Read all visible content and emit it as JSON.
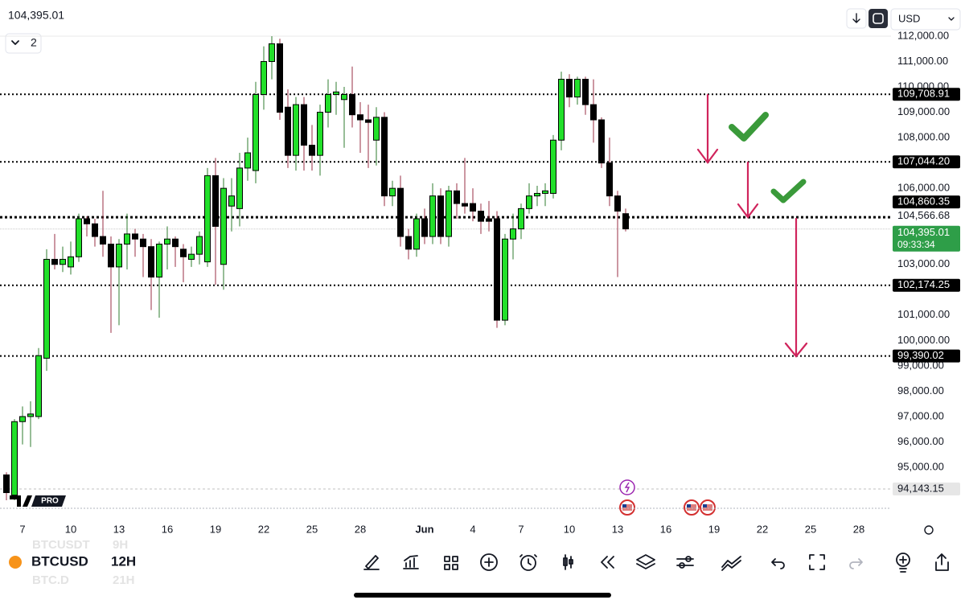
{
  "header": {
    "price": "104,395.01",
    "layout_count": "2",
    "currency": "USD"
  },
  "chart_data": {
    "type": "candlestick",
    "categories": [
      null,
      null,
      "7",
      null,
      null,
      null,
      null,
      null,
      "10",
      null,
      null,
      null,
      null,
      null,
      "13",
      null,
      null,
      null,
      null,
      null,
      "16",
      null,
      null,
      null,
      null,
      null,
      "19",
      null,
      null,
      null,
      null,
      null,
      "22",
      null,
      null,
      null,
      null,
      null,
      "25",
      null,
      null,
      null,
      null,
      null,
      "28",
      null,
      null,
      null,
      null,
      null,
      null,
      null,
      "Jun",
      null,
      null,
      null,
      null,
      null,
      "4",
      null,
      null,
      null,
      null,
      null,
      "7",
      null,
      null,
      null,
      null,
      null,
      "10",
      null,
      null,
      null,
      null,
      null,
      "13",
      null,
      null,
      null,
      null,
      null,
      "16",
      null,
      null,
      null,
      null,
      null,
      "19",
      null,
      null,
      null,
      null,
      null,
      "22",
      null,
      null,
      null,
      null,
      null,
      "25",
      null,
      null,
      null,
      null,
      null,
      "28"
    ],
    "open": [
      94700,
      93900,
      96800,
      97000,
      97000,
      99300,
      103200,
      103000,
      102900,
      103300,
      104800,
      104600,
      104100,
      103800,
      102900,
      103800,
      104200,
      104000,
      103700,
      102500,
      103800,
      104000,
      103600,
      103200,
      103400,
      103100,
      106500,
      103000,
      105300,
      105200,
      106800,
      106700,
      109700,
      111000,
      111700,
      109200,
      107300,
      109300,
      107700,
      107300,
      109000,
      109700,
      109500,
      109700,
      108900,
      108700,
      107900,
      108800,
      105700,
      106000,
      104100,
      103600,
      104800,
      104100,
      105700,
      104100,
      105900,
      105400,
      105400,
      105100,
      104800,
      104800,
      100800,
      104000,
      104400,
      105200,
      105700,
      105800,
      105800,
      107900,
      110300,
      109600,
      110300,
      109300,
      108700,
      107000,
      105700,
      105000,
      null,
      null,
      null,
      null,
      null,
      null,
      null,
      null,
      null,
      null,
      null,
      null,
      null,
      null,
      null,
      null,
      null,
      null,
      null,
      null,
      null,
      null,
      null,
      null,
      null,
      null,
      null,
      null,
      null
    ],
    "high": [
      94800,
      96900,
      97400,
      97600,
      99700,
      103600,
      104200,
      103700,
      103900,
      105000,
      104900,
      104800,
      105900,
      104100,
      104000,
      105000,
      104400,
      104200,
      104000,
      103900,
      104500,
      104100,
      103800,
      103700,
      104300,
      106800,
      107200,
      106400,
      106400,
      107400,
      108000,
      110200,
      111600,
      112000,
      111900,
      109900,
      109600,
      109600,
      108500,
      109300,
      110300,
      110200,
      110000,
      110800,
      109400,
      109300,
      109200,
      109000,
      106300,
      106500,
      104400,
      105000,
      105200,
      106200,
      106000,
      106100,
      106200,
      107200,
      106000,
      105400,
      105500,
      105100,
      104200,
      105000,
      105400,
      106200,
      106100,
      106200,
      108100,
      110600,
      110500,
      110400,
      110400,
      110300,
      108800,
      108000,
      105900,
      105200,
      null,
      null,
      null,
      null,
      null,
      null,
      null,
      null,
      null,
      null,
      null,
      null,
      null,
      null,
      null,
      null,
      null,
      null,
      null,
      null,
      null,
      null,
      null,
      null,
      null,
      null,
      null,
      null,
      null
    ],
    "low": [
      93700,
      93700,
      95900,
      95800,
      96900,
      98800,
      102800,
      102700,
      102600,
      103100,
      104100,
      103700,
      103300,
      100300,
      100600,
      102800,
      103300,
      102500,
      101200,
      100900,
      102800,
      102900,
      102300,
      102900,
      103000,
      102900,
      102200,
      102000,
      104300,
      104500,
      106300,
      106200,
      109100,
      110300,
      108700,
      106800,
      106700,
      106700,
      106700,
      106500,
      108400,
      108900,
      107600,
      108400,
      107400,
      106800,
      106900,
      105300,
      105300,
      103700,
      103200,
      103300,
      103800,
      103800,
      103800,
      103700,
      104800,
      105000,
      104700,
      104200,
      104300,
      100500,
      100600,
      103200,
      104000,
      105000,
      105300,
      105300,
      105600,
      107500,
      109200,
      109300,
      108900,
      107800,
      106800,
      105300,
      102500,
      104300,
      null,
      null,
      null,
      null,
      null,
      null,
      null,
      null,
      null,
      null,
      null,
      null,
      null,
      null,
      null,
      null,
      null,
      null,
      null,
      null,
      null,
      null,
      null,
      null,
      null,
      null,
      null,
      null,
      null
    ],
    "close": [
      94000,
      96800,
      97000,
      97100,
      99400,
      103200,
      103000,
      103200,
      103300,
      104800,
      104600,
      104100,
      103800,
      102900,
      103800,
      104200,
      104000,
      103700,
      102500,
      103800,
      104000,
      103700,
      103300,
      103400,
      104100,
      106500,
      104500,
      106000,
      105700,
      106800,
      107400,
      109700,
      111000,
      111700,
      109000,
      107300,
      109300,
      107700,
      107300,
      109000,
      109700,
      109800,
      109700,
      108900,
      108700,
      108600,
      108800,
      105700,
      106000,
      104100,
      103600,
      104800,
      104100,
      105700,
      104100,
      105900,
      105400,
      105300,
      105100,
      104700,
      104700,
      100800,
      104000,
      104400,
      105200,
      105700,
      105800,
      105900,
      107900,
      110300,
      109600,
      110300,
      109300,
      108700,
      107000,
      105700,
      105100,
      104400,
      null,
      null,
      null,
      null,
      null,
      null,
      null,
      null,
      null,
      null,
      null,
      null,
      null,
      null,
      null,
      null,
      null,
      null,
      null,
      null,
      null,
      null,
      null,
      null,
      null,
      null,
      null,
      null,
      null
    ],
    "up_color": "#22e02a",
    "down_color": "#000000",
    "up_wick": "#2f7d2f",
    "down_wick": "#9a2f45",
    "ylim": [
      93500,
      112300
    ],
    "yticks": [
      {
        "value": 112000,
        "label": "112,000.00"
      },
      {
        "value": 111000,
        "label": "111,000.00"
      },
      {
        "value": 110000,
        "label": "110,000.00"
      },
      {
        "value": 109000,
        "label": "109,000.00"
      },
      {
        "value": 108000,
        "label": "108,000.00"
      },
      {
        "value": 106000,
        "label": "106,000.00"
      },
      {
        "value": 103000,
        "label": "103,000.00"
      },
      {
        "value": 101000,
        "label": "101,000.00"
      },
      {
        "value": 100000,
        "label": "100,000.00"
      },
      {
        "value": 99000,
        "label": "99,000.00"
      },
      {
        "value": 98000,
        "label": "98,000.00"
      },
      {
        "value": 97000,
        "label": "97,000.00"
      },
      {
        "value": 96000,
        "label": "96,000.00"
      },
      {
        "value": 95000,
        "label": "95,000.00"
      }
    ],
    "levels": [
      {
        "value": 109708.91,
        "label": "109,708.91",
        "color": "#000000",
        "line": "dotted"
      },
      {
        "value": 107044.2,
        "label": "107,044.20",
        "color": "#000000",
        "line": "dotted"
      },
      {
        "value": 104860.35,
        "label": "104,860.35",
        "color": "#000000",
        "line": "dotted-bold"
      },
      {
        "value": 104566.68,
        "label": "104,566.68",
        "color": "#ffffff",
        "line": "none"
      },
      {
        "value": 102174.25,
        "label": "102,174.25",
        "color": "#000000",
        "line": "dotted"
      },
      {
        "value": 99390.02,
        "label": "99,390.02",
        "color": "#000000",
        "line": "dotted"
      },
      {
        "value": 94143.15,
        "label": "94,143.15",
        "color": "#e6e6e6",
        "line": "dashed"
      }
    ],
    "last_price": {
      "value": 104395.01,
      "label": "104,395.01",
      "countdown": "09:33:34",
      "color": "#2e9e48"
    }
  },
  "footer": {
    "symbol": "BTCUSD",
    "interval": "12H",
    "ghost_symbols": [
      "BTCUSDT",
      "BTC.D"
    ],
    "ghost_intervals": [
      "9H",
      "21H"
    ],
    "logo_badge": "PRO"
  }
}
